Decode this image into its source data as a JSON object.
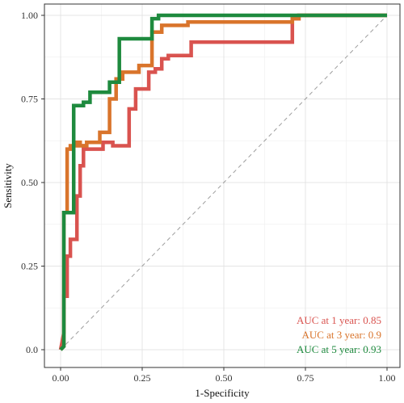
{
  "chart_data": {
    "type": "line",
    "xlabel": "1-Specificity",
    "ylabel": "Sensitivity",
    "xlim": [
      0,
      1
    ],
    "ylim": [
      0,
      1
    ],
    "xticks": [
      0,
      0.25,
      0.5,
      0.75,
      1
    ],
    "xtick_labels": [
      "0.00",
      "0.25",
      "0.50",
      "0.75",
      "1.00"
    ],
    "yticks": [
      0,
      0.25,
      0.5,
      0.75,
      1
    ],
    "ytick_labels": [
      "0.0",
      "0.25",
      "0.50",
      "0.75",
      "1.00"
    ],
    "grid": true,
    "legend_position": "bottom-right",
    "reference_line": {
      "x": [
        0,
        1
      ],
      "y": [
        0,
        1
      ],
      "style": "dashed",
      "color": "#9e9e9e"
    },
    "series": [
      {
        "name": "AUC at 1 year: 0.85",
        "color": "#d9534f",
        "x": [
          0,
          0.01,
          0.01,
          0.02,
          0.02,
          0.03,
          0.03,
          0.05,
          0.05,
          0.06,
          0.06,
          0.07,
          0.07,
          0.08,
          0.08,
          0.13,
          0.13,
          0.16,
          0.16,
          0.21,
          0.21,
          0.23,
          0.23,
          0.27,
          0.27,
          0.29,
          0.29,
          0.31,
          0.31,
          0.33,
          0.33,
          0.4,
          0.4,
          0.71,
          0.71,
          0.73,
          0.73,
          1
        ],
        "y": [
          0,
          0.05,
          0.16,
          0.16,
          0.28,
          0.28,
          0.33,
          0.33,
          0.46,
          0.46,
          0.55,
          0.55,
          0.61,
          0.61,
          0.6,
          0.6,
          0.62,
          0.62,
          0.61,
          0.61,
          0.72,
          0.72,
          0.78,
          0.78,
          0.83,
          0.83,
          0.84,
          0.84,
          0.87,
          0.87,
          0.88,
          0.88,
          0.92,
          0.92,
          0.99,
          0.99,
          1,
          1
        ]
      },
      {
        "name": "AUC at 3 year: 0.9",
        "color": "#d9742b",
        "x": [
          0,
          0.01,
          0.01,
          0.02,
          0.02,
          0.03,
          0.03,
          0.05,
          0.05,
          0.06,
          0.06,
          0.08,
          0.08,
          0.12,
          0.12,
          0.15,
          0.15,
          0.17,
          0.17,
          0.19,
          0.19,
          0.24,
          0.24,
          0.27,
          0.27,
          0.28,
          0.28,
          0.31,
          0.31,
          0.39,
          0.39,
          0.71,
          0.71,
          0.73,
          0.73,
          1
        ],
        "y": [
          0,
          0.01,
          0.41,
          0.41,
          0.6,
          0.6,
          0.61,
          0.61,
          0.62,
          0.62,
          0.61,
          0.61,
          0.62,
          0.62,
          0.65,
          0.65,
          0.75,
          0.75,
          0.81,
          0.81,
          0.83,
          0.83,
          0.85,
          0.85,
          0.85,
          0.85,
          0.95,
          0.95,
          0.97,
          0.97,
          0.98,
          0.98,
          0.99,
          0.99,
          1,
          1
        ]
      },
      {
        "name": "AUC at 5 year: 0.93",
        "color": "#1e8a3e",
        "x": [
          0,
          0.01,
          0.01,
          0.04,
          0.04,
          0.07,
          0.07,
          0.09,
          0.09,
          0.15,
          0.15,
          0.18,
          0.18,
          0.28,
          0.28,
          0.3,
          0.3,
          1
        ],
        "y": [
          0,
          0.01,
          0.41,
          0.41,
          0.73,
          0.73,
          0.74,
          0.74,
          0.77,
          0.77,
          0.8,
          0.8,
          0.93,
          0.93,
          0.99,
          0.99,
          1,
          1
        ]
      }
    ]
  },
  "legend": {
    "entries": [
      {
        "label": "AUC at 1 year: 0.85",
        "color": "#d9534f"
      },
      {
        "label": "AUC at 3 year: 0.9",
        "color": "#d9742b"
      },
      {
        "label": "AUC at 5 year: 0.93",
        "color": "#1e8a3e"
      }
    ]
  }
}
